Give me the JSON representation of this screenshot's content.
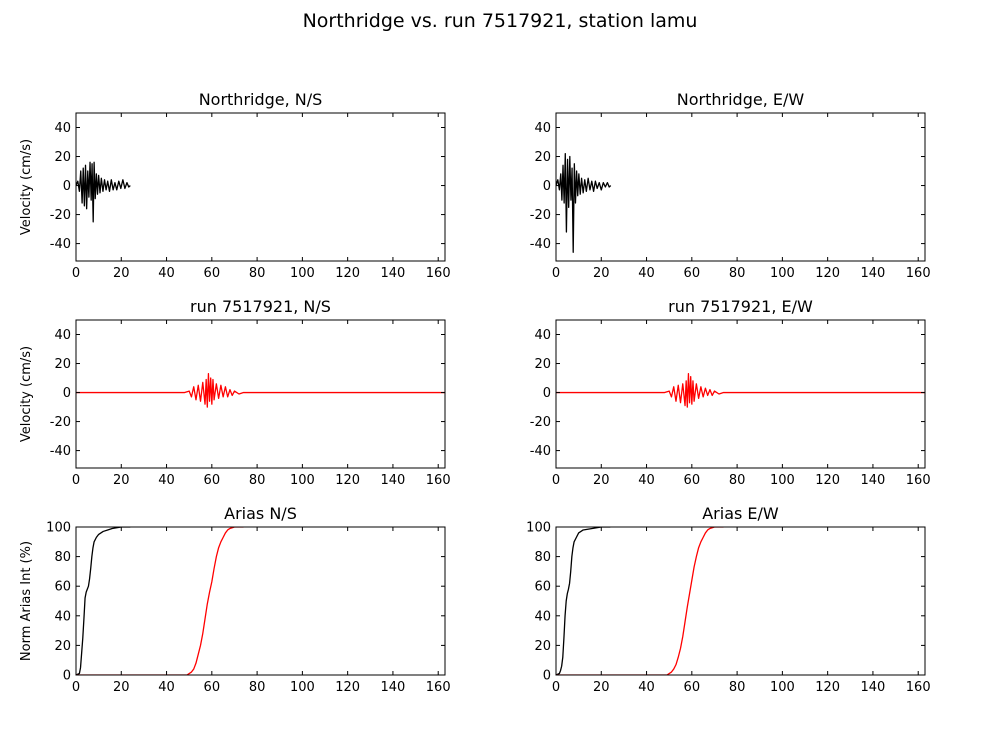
{
  "figure": {
    "suptitle": "Northridge vs. run 7517921, station lamu"
  },
  "colors": {
    "data": "#000000",
    "run": "#ff0000"
  },
  "chart_data": [
    {
      "type": "line",
      "title": "Northridge, N/S",
      "ylabel": "Velocity (cm/s)",
      "xlim": [
        0,
        163
      ],
      "ylim": [
        -52,
        50
      ],
      "xticks": [
        0,
        20,
        40,
        60,
        80,
        100,
        120,
        140,
        160
      ],
      "yticks": [
        -40,
        -20,
        0,
        20,
        40
      ],
      "series": [
        {
          "color": "#000000",
          "x": [
            0,
            0.8,
            1.5,
            2.1,
            2.7,
            3.2,
            3.7,
            4.2,
            4.7,
            5.2,
            5.7,
            6.2,
            6.7,
            7.1,
            7.6,
            8.0,
            8.5,
            9.0,
            9.5,
            10.0,
            10.6,
            11.2,
            11.9,
            12.6,
            13.3,
            14.0,
            14.8,
            15.6,
            16.4,
            17.2,
            18.0,
            18.9,
            19.8,
            20.7,
            21.6,
            22.5,
            23.3,
            24.0
          ],
          "y": [
            0,
            3,
            -4,
            10,
            -12,
            12,
            -14,
            14,
            -16,
            10,
            -8,
            16,
            -10,
            15,
            -25,
            16,
            -9,
            8,
            -6,
            7,
            -5,
            5,
            -4,
            4,
            -3,
            3,
            -4,
            4,
            -3,
            2,
            -3,
            3,
            -2,
            4,
            -2,
            2,
            -1,
            0
          ]
        }
      ]
    },
    {
      "type": "line",
      "title": "Northridge, E/W",
      "ylabel": "",
      "xlim": [
        0,
        163
      ],
      "ylim": [
        -52,
        50
      ],
      "xticks": [
        0,
        20,
        40,
        60,
        80,
        100,
        120,
        140,
        160
      ],
      "yticks": [
        -40,
        -20,
        0,
        20,
        40
      ],
      "series": [
        {
          "color": "#000000",
          "x": [
            0,
            0.8,
            1.5,
            2.1,
            2.6,
            3.1,
            3.6,
            4.1,
            4.6,
            5.1,
            5.6,
            6.1,
            6.6,
            7.1,
            7.6,
            8.1,
            8.6,
            9.1,
            9.6,
            10.1,
            10.7,
            11.3,
            12.0,
            12.7,
            13.4,
            14.2,
            15.0,
            15.8,
            16.6,
            17.4,
            18.2,
            19.1,
            20.0,
            20.9,
            21.8,
            22.7,
            23.5,
            24.2
          ],
          "y": [
            0,
            4,
            -3,
            8,
            -10,
            14,
            -12,
            22,
            -32,
            18,
            -15,
            20,
            -10,
            12,
            -46,
            15,
            -12,
            10,
            -7,
            8,
            -6,
            5,
            -5,
            4,
            -4,
            5,
            -3,
            3,
            -4,
            3,
            -2,
            2,
            -3,
            2,
            -1,
            2,
            -1,
            0
          ]
        }
      ]
    },
    {
      "type": "line",
      "title": "run 7517921, N/S",
      "ylabel": "Velocity (cm/s)",
      "xlim": [
        0,
        163
      ],
      "ylim": [
        -52,
        50
      ],
      "xticks": [
        0,
        20,
        40,
        60,
        80,
        100,
        120,
        140,
        160
      ],
      "yticks": [
        -40,
        -20,
        0,
        20,
        40
      ],
      "series": [
        {
          "color": "#ff0000",
          "x": [
            0,
            48,
            50,
            51,
            52,
            53,
            54,
            55,
            56,
            57,
            57.5,
            58,
            58.5,
            59,
            59.5,
            60,
            60.5,
            61,
            62,
            63,
            64,
            65,
            66,
            67,
            68,
            69,
            70,
            72,
            74,
            100,
            163
          ],
          "y": [
            0,
            0,
            1,
            -3,
            4,
            -5,
            5,
            -6,
            7,
            -8,
            9,
            -10,
            13,
            -6,
            10,
            -8,
            9,
            -5,
            6,
            -4,
            5,
            -3,
            4,
            -3,
            2,
            -2,
            1,
            -1,
            0,
            0,
            0
          ]
        }
      ]
    },
    {
      "type": "line",
      "title": "run 7517921, E/W",
      "ylabel": "",
      "xlim": [
        0,
        163
      ],
      "ylim": [
        -52,
        50
      ],
      "xticks": [
        0,
        20,
        40,
        60,
        80,
        100,
        120,
        140,
        160
      ],
      "yticks": [
        -40,
        -20,
        0,
        20,
        40
      ],
      "series": [
        {
          "color": "#ff0000",
          "x": [
            0,
            48,
            50,
            51,
            52,
            53,
            54,
            55,
            56,
            57,
            57.5,
            58,
            58.5,
            59,
            59.5,
            60,
            60.5,
            61,
            62,
            63,
            64,
            65,
            66,
            67,
            68,
            69,
            70,
            72,
            74,
            100,
            163
          ],
          "y": [
            0,
            0,
            1,
            -3,
            4,
            -6,
            5,
            -7,
            6,
            -9,
            8,
            -10,
            13,
            -7,
            11,
            -8,
            8,
            -6,
            6,
            -4,
            4,
            -3,
            3,
            -2,
            2,
            -2,
            1,
            -1,
            0,
            0,
            0
          ]
        }
      ]
    },
    {
      "type": "line",
      "title": "Arias N/S",
      "ylabel": "Norm Arias Int (%)",
      "xlim": [
        0,
        163
      ],
      "ylim": [
        0,
        100
      ],
      "xticks": [
        0,
        20,
        40,
        60,
        80,
        100,
        120,
        140,
        160
      ],
      "yticks": [
        0,
        20,
        40,
        60,
        80,
        100
      ],
      "series": [
        {
          "color": "#000000",
          "x": [
            0,
            1.5,
            2.0,
            2.5,
            3.0,
            3.5,
            4.0,
            4.5,
            5.0,
            5.5,
            6.0,
            6.5,
            7.0,
            7.5,
            8.0,
            9.0,
            10.0,
            11.0,
            12.0,
            14.0,
            16.0,
            18.0,
            20.0,
            24.0
          ],
          "y": [
            0,
            1,
            5,
            15,
            25,
            38,
            52,
            56,
            58,
            60,
            65,
            72,
            80,
            86,
            90,
            93,
            95,
            96,
            97,
            98,
            99,
            99.5,
            100,
            100
          ]
        },
        {
          "color": "#ff0000",
          "x": [
            0,
            49,
            50,
            51,
            52,
            53,
            54,
            55,
            56,
            57,
            58,
            59,
            60,
            61,
            62,
            63,
            64,
            65,
            66,
            67,
            68,
            69,
            70,
            72,
            74
          ],
          "y": [
            0,
            0,
            1,
            2,
            4,
            8,
            14,
            20,
            28,
            38,
            48,
            56,
            63,
            72,
            80,
            86,
            90,
            93,
            96,
            98,
            99,
            99.5,
            100,
            100,
            100
          ]
        }
      ]
    },
    {
      "type": "line",
      "title": "Arias E/W",
      "ylabel": "",
      "xlim": [
        0,
        163
      ],
      "ylim": [
        0,
        100
      ],
      "xticks": [
        0,
        20,
        40,
        60,
        80,
        100,
        120,
        140,
        160
      ],
      "yticks": [
        0,
        20,
        40,
        60,
        80,
        100
      ],
      "series": [
        {
          "color": "#000000",
          "x": [
            0,
            1.5,
            2.0,
            2.5,
            3.0,
            3.5,
            4.0,
            4.5,
            5.0,
            5.5,
            6.0,
            6.5,
            7.0,
            7.5,
            8.0,
            9.0,
            10.0,
            11.0,
            12.0,
            14.0,
            16.0,
            18.0,
            20.0,
            24.0
          ],
          "y": [
            0,
            1,
            3,
            6,
            12,
            25,
            40,
            50,
            55,
            58,
            62,
            70,
            80,
            86,
            90,
            93,
            96,
            97,
            98,
            98.5,
            99,
            99.5,
            100,
            100
          ]
        },
        {
          "color": "#ff0000",
          "x": [
            0,
            49,
            50,
            51,
            52,
            53,
            54,
            55,
            56,
            57,
            58,
            59,
            60,
            61,
            62,
            63,
            64,
            65,
            66,
            67,
            68,
            69,
            70,
            72,
            74
          ],
          "y": [
            0,
            0,
            1,
            2,
            4,
            7,
            12,
            18,
            26,
            36,
            46,
            55,
            64,
            73,
            80,
            86,
            90,
            93,
            96,
            98,
            99,
            99.5,
            100,
            100,
            100
          ]
        }
      ]
    }
  ]
}
